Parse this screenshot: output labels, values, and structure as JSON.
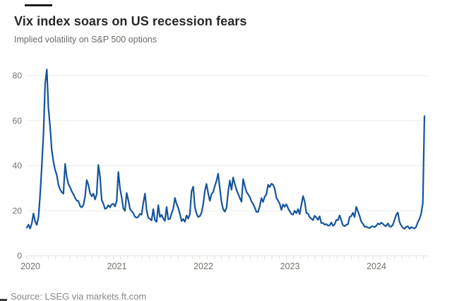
{
  "header": {
    "title": "Vix index soars on US recession fears",
    "subtitle": "Implied volatility on S&P 500 options"
  },
  "footer": {
    "source": "Source: LSEG via markets.ft.com"
  },
  "colors": {
    "line": "#15549c",
    "grid": "#ebebeb",
    "axis": "#e7ded6",
    "tick": "#e7ded6",
    "label": "#76716b",
    "title": "#26282a",
    "subtitle": "#6f6a64",
    "source": "#8c8781",
    "top_bar": "#1d1d1b"
  },
  "chart_data": {
    "type": "line",
    "title": "Vix index soars on US recession fears",
    "subtitle": "Implied volatility on S&P 500 options",
    "source": "Source: LSEG via markets.ft.com",
    "xlabel": "",
    "ylabel": "",
    "grid": "horizontal",
    "legend": "none",
    "ylim": [
      0,
      84
    ],
    "yticks": [
      0,
      20,
      40,
      60,
      80
    ],
    "x_years": [
      2020,
      2021,
      2022,
      2023,
      2024
    ],
    "x_start": 2020.0,
    "x_end": 2024.6,
    "months_shown": 56,
    "series": [
      {
        "name": "Vix index",
        "sampling": "weekly",
        "segments": [
          {
            "year": 2020,
            "weekly_values": [
              12.5,
              13.8,
              12.1,
              14.5,
              18.8,
              15.2,
              13.7,
              17.1,
              27.0,
              40.1,
              54.5,
              76.5,
              82.7,
              65.5,
              57.1,
              46.7,
              41.7,
              38.2,
              35.9,
              31.4,
              29.5,
              28.2,
              27.6,
              40.8,
              35.1,
              31.8,
              30.4,
              28.6,
              27.3,
              25.7,
              24.5,
              24.3,
              22.1,
              21.5,
              22.5,
              26.4,
              33.6,
              31.5,
              27.8,
              26.4,
              27.6,
              25.0,
              27.4,
              40.3,
              35.0,
              24.8,
              23.1,
              20.8,
              21.2,
              22.5,
              21.5,
              22.8
            ]
          },
          {
            "year": 2021,
            "weekly_values": [
              23.1,
              21.9,
              24.3,
              37.2,
              30.0,
              25.9,
              21.0,
              20.0,
              27.9,
              24.7,
              20.7,
              19.8,
              18.9,
              17.3,
              16.9,
              17.3,
              18.6,
              18.3,
              23.5,
              27.6,
              20.2,
              16.8,
              16.4,
              15.7,
              20.7,
              15.8,
              15.1,
              22.5,
              17.2,
              18.2,
              16.5,
              15.5,
              21.7,
              16.2,
              16.4,
              18.8,
              20.9,
              25.7,
              23.1,
              21.3,
              18.6,
              15.4,
              16.3,
              15.1,
              17.9,
              16.5,
              18.6,
              28.6,
              30.7,
              21.6,
              18.7,
              17.2
            ]
          },
          {
            "year": 2022,
            "weekly_values": [
              17.6,
              19.2,
              22.8,
              28.9,
              31.9,
              27.7,
              24.4,
              27.4,
              28.3,
              31.0,
              33.3,
              36.5,
              29.8,
              23.9,
              20.6,
              19.6,
              21.2,
              28.2,
              33.4,
              29.3,
              34.8,
              31.8,
              29.4,
              27.5,
              25.7,
              24.0,
              34.0,
              31.1,
              28.4,
              27.3,
              26.1,
              24.2,
              23.0,
              21.4,
              19.5,
              19.5,
              22.0,
              25.6,
              23.9,
              26.3,
              27.3,
              31.6,
              30.5,
              32.0,
              31.6,
              29.7,
              25.8,
              24.5,
              23.1,
              20.4,
              22.8,
              21.7
            ]
          },
          {
            "year": 2023,
            "weekly_values": [
              22.9,
              21.1,
              19.8,
              18.5,
              18.3,
              20.0,
              18.9,
              20.7,
              18.5,
              22.6,
              26.5,
              24.1,
              19.0,
              18.7,
              17.1,
              16.5,
              15.8,
              17.8,
              16.9,
              16.0,
              17.5,
              14.5,
              14.6,
              13.8,
              14.1,
              13.4,
              13.5,
              14.8,
              13.3,
              13.9,
              15.9,
              15.8,
              17.9,
              15.7,
              13.6,
              13.1,
              13.8,
              14.0,
              17.2,
              17.6,
              19.1,
              17.2,
              21.7,
              19.8,
              17.6,
              15.2,
              14.2,
              12.9,
              13.0,
              12.5,
              12.3,
              13.0
            ]
          },
          {
            "year": 2024,
            "weekly_values": [
              13.1,
              12.7,
              13.3,
              14.4,
              13.9,
              14.7,
              14.2,
              13.4,
              13.1,
              14.4,
              13.0,
              13.0,
              13.7,
              16.0,
              18.2,
              19.2,
              15.0,
              13.5,
              12.5,
              12.0,
              12.9,
              13.1,
              12.0,
              12.7,
              12.4,
              12.1,
              12.9,
              14.9,
              16.4,
              18.6,
              23.4,
              62.0
            ]
          }
        ]
      }
    ]
  }
}
